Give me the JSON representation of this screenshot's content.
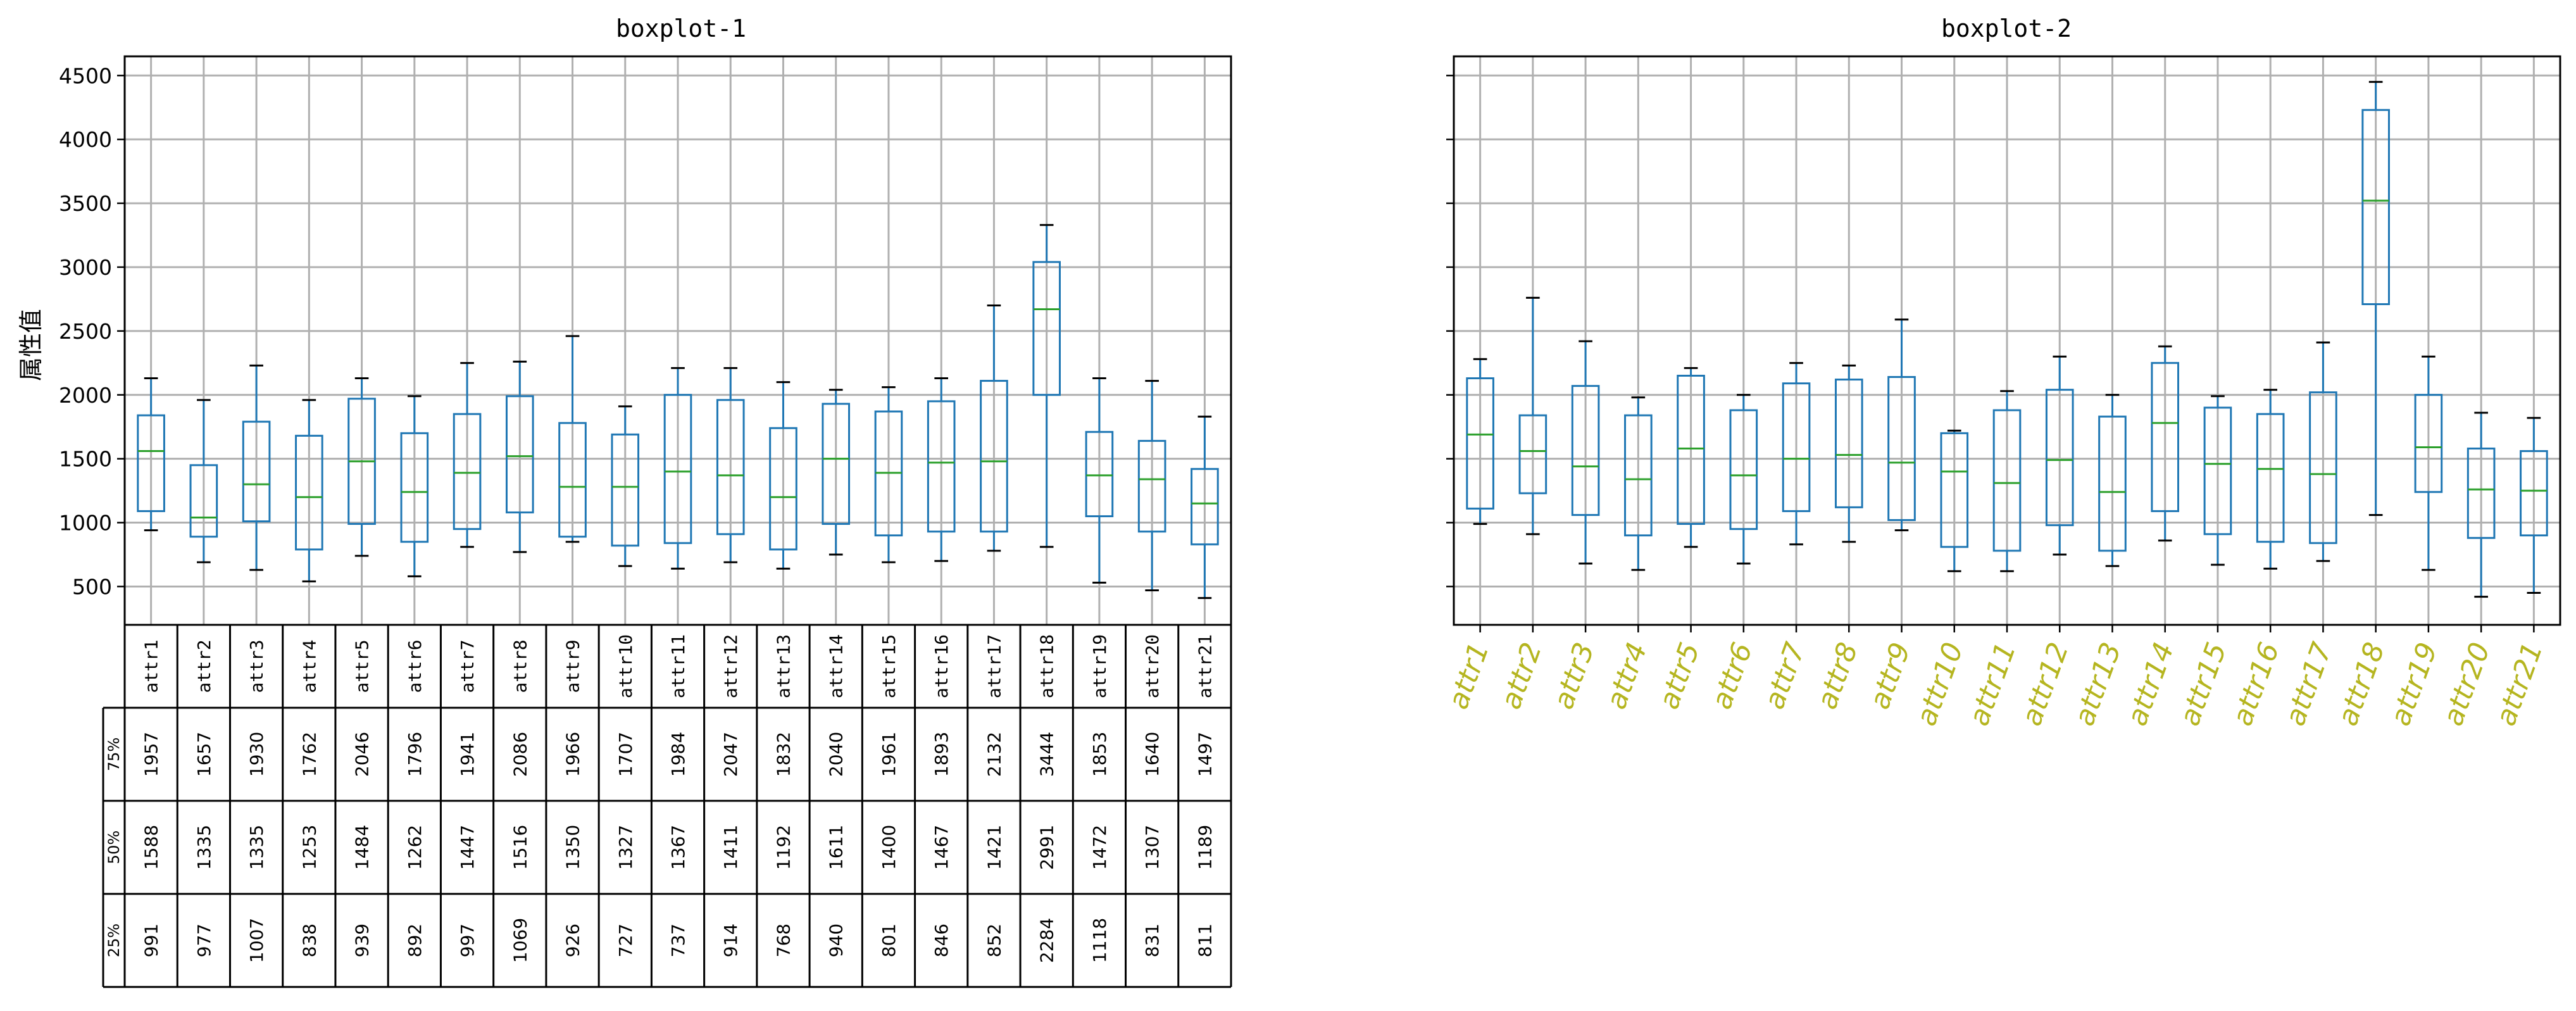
{
  "chart_data": [
    {
      "type": "boxplot",
      "title": "boxplot-1",
      "ylabel": "属性值",
      "ylim": [
        200,
        4650
      ],
      "yticks": [
        500,
        1000,
        1500,
        2000,
        2500,
        3000,
        3500,
        4000,
        4500
      ],
      "grid": true,
      "categories": [
        "attr1",
        "attr2",
        "attr3",
        "attr4",
        "attr5",
        "attr6",
        "attr7",
        "attr8",
        "attr9",
        "attr10",
        "attr11",
        "attr12",
        "attr13",
        "attr14",
        "attr15",
        "attr16",
        "attr17",
        "attr18",
        "attr19",
        "attr20",
        "attr21"
      ],
      "boxes": [
        {
          "whislo": 940,
          "q1": 1090,
          "med": 1560,
          "q3": 1840,
          "whishi": 2130
        },
        {
          "whislo": 690,
          "q1": 890,
          "med": 1040,
          "q3": 1450,
          "whishi": 1960
        },
        {
          "whislo": 630,
          "q1": 1010,
          "med": 1300,
          "q3": 1790,
          "whishi": 2230
        },
        {
          "whislo": 540,
          "q1": 790,
          "med": 1200,
          "q3": 1680,
          "whishi": 1960
        },
        {
          "whislo": 740,
          "q1": 990,
          "med": 1480,
          "q3": 1970,
          "whishi": 2130
        },
        {
          "whislo": 580,
          "q1": 850,
          "med": 1240,
          "q3": 1700,
          "whishi": 1990
        },
        {
          "whislo": 810,
          "q1": 950,
          "med": 1390,
          "q3": 1850,
          "whishi": 2250
        },
        {
          "whislo": 770,
          "q1": 1080,
          "med": 1520,
          "q3": 1990,
          "whishi": 2260
        },
        {
          "whislo": 850,
          "q1": 890,
          "med": 1280,
          "q3": 1780,
          "whishi": 2460
        },
        {
          "whislo": 660,
          "q1": 820,
          "med": 1280,
          "q3": 1690,
          "whishi": 1910
        },
        {
          "whislo": 640,
          "q1": 840,
          "med": 1400,
          "q3": 2000,
          "whishi": 2210
        },
        {
          "whislo": 690,
          "q1": 910,
          "med": 1370,
          "q3": 1960,
          "whishi": 2210
        },
        {
          "whislo": 640,
          "q1": 790,
          "med": 1200,
          "q3": 1740,
          "whishi": 2100
        },
        {
          "whislo": 750,
          "q1": 990,
          "med": 1500,
          "q3": 1930,
          "whishi": 2040
        },
        {
          "whislo": 690,
          "q1": 900,
          "med": 1390,
          "q3": 1870,
          "whishi": 2060
        },
        {
          "whislo": 700,
          "q1": 930,
          "med": 1470,
          "q3": 1950,
          "whishi": 2130
        },
        {
          "whislo": 780,
          "q1": 930,
          "med": 1480,
          "q3": 2110,
          "whishi": 2700
        },
        {
          "whislo": 810,
          "q1": 2000,
          "med": 2670,
          "q3": 3040,
          "whishi": 3330
        },
        {
          "whislo": 530,
          "q1": 1050,
          "med": 1370,
          "q3": 1710,
          "whishi": 2130
        },
        {
          "whislo": 470,
          "q1": 930,
          "med": 1340,
          "q3": 1640,
          "whishi": 2110
        },
        {
          "whislo": 410,
          "q1": 830,
          "med": 1150,
          "q3": 1420,
          "whishi": 1830
        }
      ],
      "table": {
        "columns": [
          "attr1",
          "attr2",
          "attr3",
          "attr4",
          "attr5",
          "attr6",
          "attr7",
          "attr8",
          "attr9",
          "attr10",
          "attr11",
          "attr12",
          "attr13",
          "attr14",
          "attr15",
          "attr16",
          "attr17",
          "attr18",
          "attr19",
          "attr20",
          "attr21"
        ],
        "rows": [
          {
            "label": "75%",
            "values": [
              "1957",
              "1657",
              "1930",
              "1762",
              "2046",
              "1796",
              "1941",
              "2086",
              "1966",
              "1707",
              "1984",
              "2047",
              "1832",
              "2040",
              "1961",
              "1893",
              "2132",
              "3444",
              "1853",
              "1640",
              "1497"
            ]
          },
          {
            "label": "50%",
            "values": [
              "1588",
              "1335",
              "1335",
              "1253",
              "1484",
              "1262",
              "1447",
              "1516",
              "1350",
              "1327",
              "1367",
              "1411",
              "1192",
              "1611",
              "1400",
              "1467",
              "1421",
              "2991",
              "1472",
              "1307",
              "1189"
            ]
          },
          {
            "label": "25%",
            "values": [
              "991",
              "977",
              "1007",
              "838",
              "939",
              "892",
              "997",
              "1069",
              "926",
              "727",
              "737",
              "914",
              "768",
              "940",
              "801",
              "846",
              "852",
              "2284",
              "1118",
              "831",
              "811"
            ]
          }
        ]
      }
    },
    {
      "type": "boxplot",
      "title": "boxplot-2",
      "ylim": [
        200,
        4650
      ],
      "grid": true,
      "categories": [
        "attr1",
        "attr2",
        "attr3",
        "attr4",
        "attr5",
        "attr6",
        "attr7",
        "attr8",
        "attr9",
        "attr10",
        "attr11",
        "attr12",
        "attr13",
        "attr14",
        "attr15",
        "attr16",
        "attr17",
        "attr18",
        "attr19",
        "attr20",
        "attr21"
      ],
      "xtick_color": "#b5b520",
      "boxes": [
        {
          "whislo": 990,
          "q1": 1110,
          "med": 1690,
          "q3": 2130,
          "whishi": 2280
        },
        {
          "whislo": 910,
          "q1": 1230,
          "med": 1560,
          "q3": 1840,
          "whishi": 2760
        },
        {
          "whislo": 680,
          "q1": 1060,
          "med": 1440,
          "q3": 2070,
          "whishi": 2420
        },
        {
          "whislo": 630,
          "q1": 900,
          "med": 1340,
          "q3": 1840,
          "whishi": 1980
        },
        {
          "whislo": 810,
          "q1": 990,
          "med": 1580,
          "q3": 2150,
          "whishi": 2210
        },
        {
          "whislo": 680,
          "q1": 950,
          "med": 1370,
          "q3": 1880,
          "whishi": 2000
        },
        {
          "whislo": 830,
          "q1": 1090,
          "med": 1500,
          "q3": 2090,
          "whishi": 2250
        },
        {
          "whislo": 850,
          "q1": 1120,
          "med": 1530,
          "q3": 2120,
          "whishi": 2230
        },
        {
          "whislo": 940,
          "q1": 1020,
          "med": 1470,
          "q3": 2140,
          "whishi": 2590
        },
        {
          "whislo": 620,
          "q1": 810,
          "med": 1400,
          "q3": 1700,
          "whishi": 1720
        },
        {
          "whislo": 620,
          "q1": 780,
          "med": 1310,
          "q3": 1880,
          "whishi": 2030
        },
        {
          "whislo": 750,
          "q1": 980,
          "med": 1490,
          "q3": 2040,
          "whishi": 2300
        },
        {
          "whislo": 660,
          "q1": 780,
          "med": 1240,
          "q3": 1830,
          "whishi": 2000
        },
        {
          "whislo": 860,
          "q1": 1090,
          "med": 1780,
          "q3": 2250,
          "whishi": 2380
        },
        {
          "whislo": 670,
          "q1": 910,
          "med": 1460,
          "q3": 1900,
          "whishi": 1990
        },
        {
          "whislo": 640,
          "q1": 850,
          "med": 1420,
          "q3": 1850,
          "whishi": 2040
        },
        {
          "whislo": 700,
          "q1": 840,
          "med": 1380,
          "q3": 2020,
          "whishi": 2410
        },
        {
          "whislo": 1060,
          "q1": 2710,
          "med": 3520,
          "q3": 4230,
          "whishi": 4450
        },
        {
          "whislo": 630,
          "q1": 1240,
          "med": 1590,
          "q3": 2000,
          "whishi": 2300
        },
        {
          "whislo": 420,
          "q1": 880,
          "med": 1260,
          "q3": 1580,
          "whishi": 1860
        },
        {
          "whislo": 450,
          "q1": 900,
          "med": 1250,
          "q3": 1560,
          "whishi": 1820
        }
      ]
    }
  ]
}
